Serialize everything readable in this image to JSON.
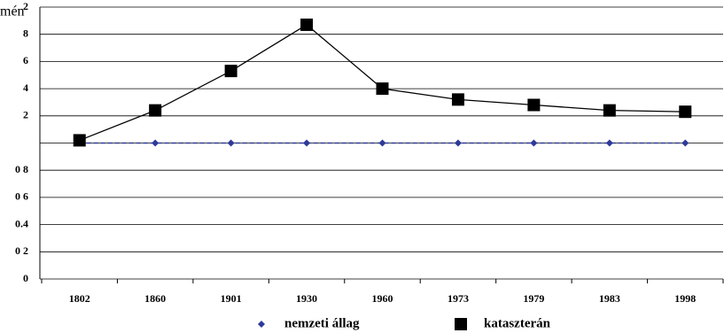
{
  "header": {
    "text": "mén"
  },
  "chart_data": {
    "type": "line",
    "categories": [
      "1802",
      "1860",
      "1901",
      "1930",
      "1960",
      "1973",
      "1979",
      "1983",
      "1998"
    ],
    "series": [
      {
        "name": "nemzeti állag",
        "color": "#2e3a9a",
        "marker": "diamond",
        "dashed": true,
        "values": [
          1,
          1,
          1,
          1,
          1,
          1,
          1,
          1,
          1
        ]
      },
      {
        "name": "kataszterán",
        "color": "#000000",
        "marker": "square",
        "dashed": false,
        "values": [
          1.02,
          1.24,
          1.53,
          1.87,
          1.4,
          1.32,
          1.28,
          1.24,
          1.23
        ]
      }
    ],
    "ylim": [
      0,
      2
    ],
    "yticks": [
      0,
      {
        "value": 0.2,
        "label": "0 2"
      },
      {
        "value": 0.4,
        "label": "0.4"
      },
      {
        "value": 0.6,
        "label": "0 6"
      },
      {
        "value": 0.8,
        "label": "0 8"
      },
      {
        "value": 1,
        "label": null
      },
      {
        "value": 1.2,
        "label": "2"
      },
      {
        "value": 1.4,
        "label": "4"
      },
      {
        "value": 1.6,
        "label": "6"
      },
      {
        "value": 1.8,
        "label": "8"
      },
      {
        "value": 2,
        "label": "2"
      }
    ],
    "grid": true
  }
}
